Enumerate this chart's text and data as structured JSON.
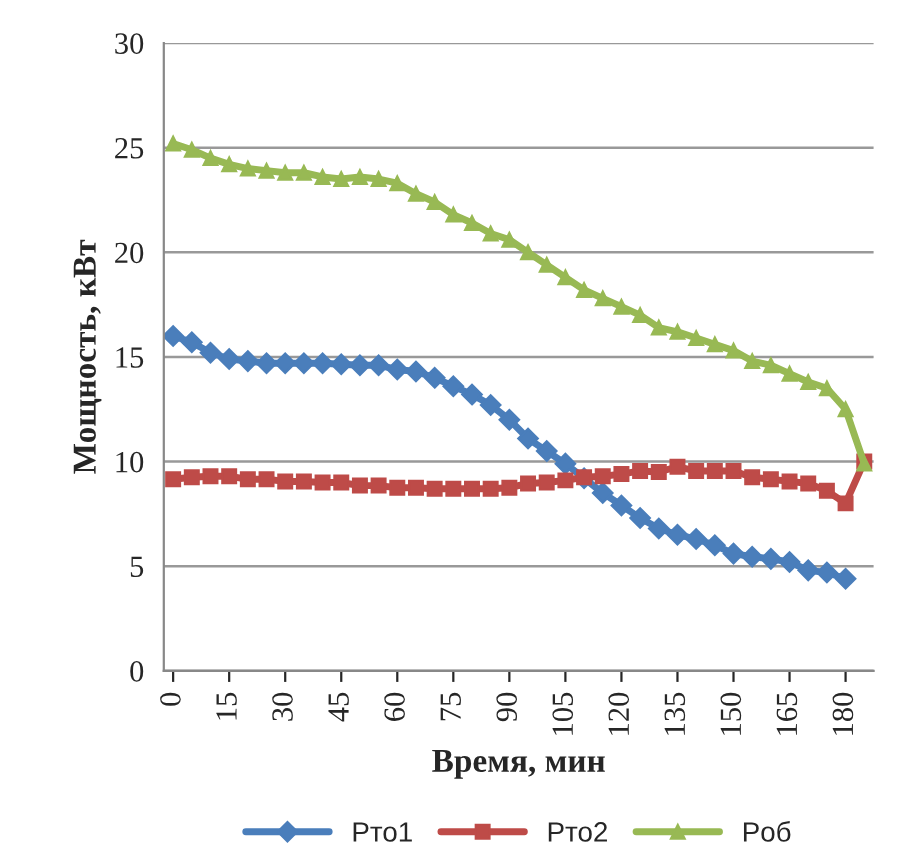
{
  "chart_data": {
    "type": "line",
    "xlabel": "Время, мин",
    "ylabel": "Мощность, кВт",
    "x": [
      0,
      5,
      10,
      15,
      20,
      25,
      30,
      35,
      40,
      45,
      50,
      55,
      60,
      65,
      70,
      75,
      80,
      85,
      90,
      95,
      100,
      105,
      110,
      115,
      120,
      125,
      130,
      135,
      140,
      145,
      150,
      155,
      160,
      165,
      170,
      175,
      180,
      185
    ],
    "series": [
      {
        "name": "Pто1",
        "color": "#4a7ebb",
        "marker": "diamond",
        "values": [
          16.0,
          15.7,
          15.2,
          14.9,
          14.8,
          14.7,
          14.7,
          14.7,
          14.7,
          14.65,
          14.6,
          14.6,
          14.4,
          14.3,
          14.0,
          13.6,
          13.2,
          12.7,
          12.0,
          11.1,
          10.5,
          9.9,
          9.2,
          8.5,
          7.9,
          7.3,
          6.8,
          6.5,
          6.3,
          6.0,
          5.6,
          5.45,
          5.35,
          5.2,
          4.8,
          4.7,
          4.4,
          null
        ]
      },
      {
        "name": "Pто2",
        "color": "#be4b48",
        "marker": "square",
        "values": [
          9.15,
          9.25,
          9.3,
          9.3,
          9.15,
          9.15,
          9.05,
          9.05,
          9.0,
          9.0,
          8.85,
          8.85,
          8.75,
          8.75,
          8.7,
          8.7,
          8.7,
          8.7,
          8.75,
          8.95,
          9.0,
          9.1,
          9.25,
          9.3,
          9.4,
          9.55,
          9.5,
          9.75,
          9.55,
          9.55,
          9.55,
          9.25,
          9.15,
          9.05,
          8.95,
          8.6,
          8.0,
          10.0
        ]
      },
      {
        "name": "Pоб",
        "color": "#98b954",
        "marker": "triangle",
        "values": [
          25.2,
          24.9,
          24.5,
          24.2,
          24.0,
          23.9,
          23.8,
          23.8,
          23.6,
          23.5,
          23.6,
          23.5,
          23.3,
          22.8,
          22.4,
          21.8,
          21.4,
          20.9,
          20.6,
          20.0,
          19.4,
          18.8,
          18.2,
          17.8,
          17.4,
          17.0,
          16.4,
          16.2,
          15.9,
          15.6,
          15.3,
          14.8,
          14.6,
          14.2,
          13.8,
          13.5,
          12.5,
          9.9
        ]
      }
    ],
    "xlim": [
      -2.5,
      187.5
    ],
    "xticks": [
      0,
      15,
      30,
      45,
      60,
      75,
      90,
      105,
      120,
      135,
      150,
      165,
      180
    ],
    "ylim": [
      0,
      30
    ],
    "yticks": [
      0,
      5,
      10,
      15,
      20,
      25,
      30
    ],
    "grid": "y",
    "legend": "bottom",
    "line_style": "solid"
  }
}
